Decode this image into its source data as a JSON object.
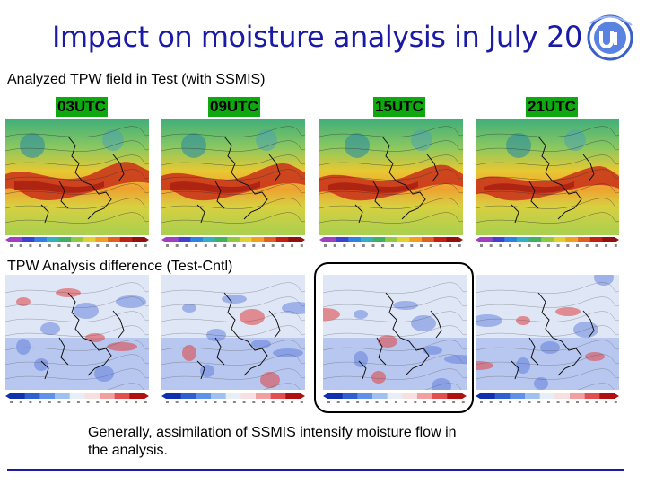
{
  "slide": {
    "title": "Impact on moisture analysis in July 20",
    "section_top": "Analyzed TPW field in Test (with SSMIS)",
    "section_bottom": "TPW Analysis difference (Test-Cntl)",
    "conclusion": "Generally, assimilation of SSMIS intensify moisture flow in\nthe analysis."
  },
  "panels": [
    {
      "time": "03UTC"
    },
    {
      "time": "09UTC"
    },
    {
      "time": "15UTC"
    },
    {
      "time": "21UTC"
    }
  ],
  "colors": {
    "title": "#1a1aa6",
    "time_label_bg": "#10a810",
    "tpw_base": "#f0d040",
    "diff_base": "#c8d8f8"
  }
}
